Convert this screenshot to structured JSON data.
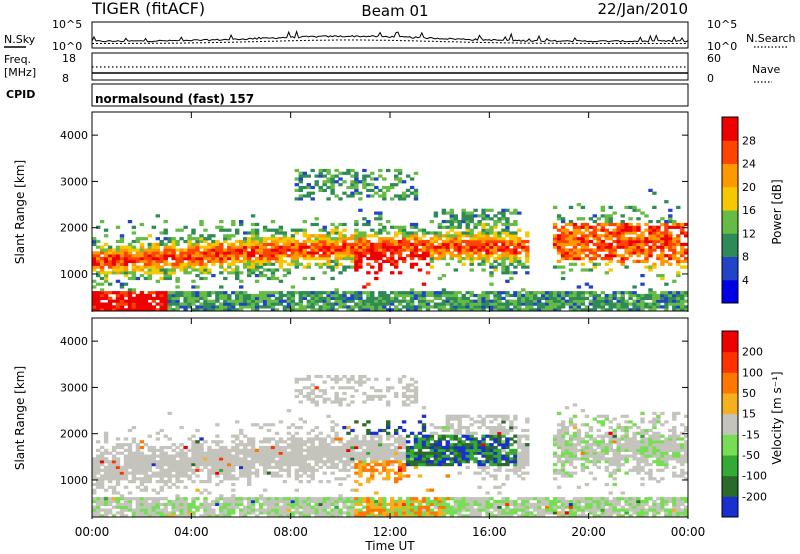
{
  "header": {
    "radar_title": "TIGER (fitACF)",
    "beam": "Beam 01",
    "date": "22/Jan/2010"
  },
  "top_panels": {
    "nsky_label": "N.Sky",
    "nsky_ticks": [
      "10^5",
      "10^0"
    ],
    "nsearch_label": "N.Search",
    "nsearch_ticks": [
      "10^5",
      "10^0"
    ],
    "freq_label_1": "Freq.",
    "freq_label_2": "[MHz]",
    "freq_ticks": [
      "18",
      "8"
    ],
    "nave_label": "Nave",
    "nave_ticks": [
      "60",
      "0"
    ],
    "cpid_label": "CPID",
    "cpid_value": "normalsound (fast) 157"
  },
  "chart_data": [
    {
      "type": "heatmap",
      "name": "power",
      "ylabel": "Slant Range [km]",
      "ylim": [
        200,
        4500
      ],
      "yticks": [
        "1000",
        "2000",
        "3000",
        "4000"
      ],
      "colorbar_label": "Power [dB]",
      "colorbar_ticks": [
        "28",
        "24",
        "20",
        "16",
        "12",
        "8",
        "4"
      ],
      "colors": [
        "#0000e6",
        "#2244c8",
        "#2e8b57",
        "#66bb44",
        "#f5c800",
        "#ff9900",
        "#ff4400",
        "#ee0000"
      ],
      "grid": false
    },
    {
      "type": "heatmap",
      "name": "velocity",
      "ylabel": "Slant Range [km]",
      "ylim": [
        200,
        4500
      ],
      "yticks": [
        "1000",
        "2000",
        "3000",
        "4000"
      ],
      "xlabel": "Time UT",
      "xticks": [
        "00:00",
        "04:00",
        "08:00",
        "12:00",
        "16:00",
        "20:00",
        "00:00"
      ],
      "colorbar_label": "Velocity [m s⁻¹]",
      "colorbar_ticks": [
        "200",
        "100",
        "50",
        "15",
        "-15",
        "-50",
        "-100",
        "-200"
      ],
      "colors": [
        "#1a2fd0",
        "#2a6a2a",
        "#33aa33",
        "#77dd55",
        "#c4c4bc",
        "#f5b020",
        "#ff7700",
        "#ff3300",
        "#ee0000"
      ],
      "grid": false
    }
  ]
}
